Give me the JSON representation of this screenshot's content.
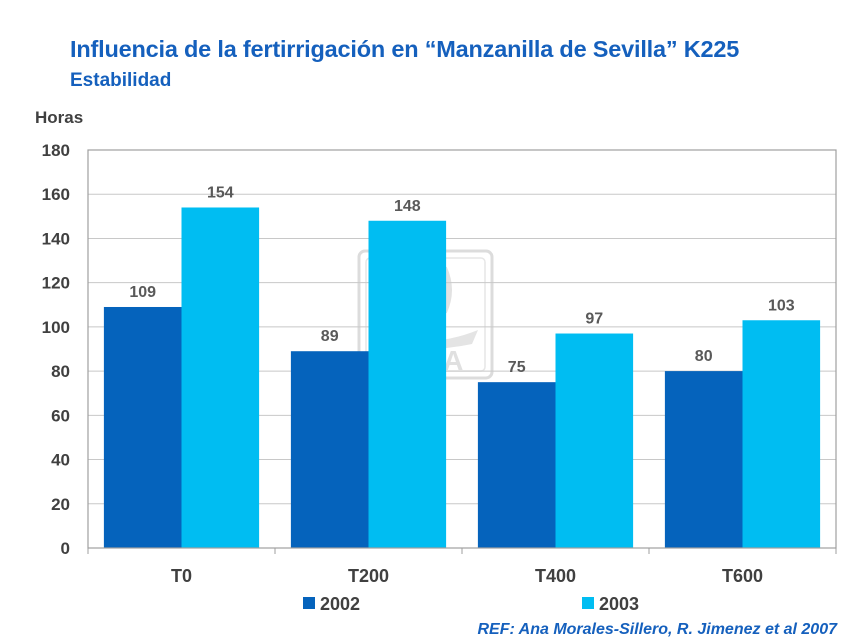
{
  "slide": {
    "title": "Influencia de la fertirrigación en “Manzanilla de Sevilla” K225",
    "subtitle": "Estabilidad",
    "reference": "REF: Ana Morales-Sillero, R. Jimenez et al 2007",
    "watermark": "YARA"
  },
  "colors": {
    "title": "#1560bd",
    "series_2002": "#0563bc",
    "series_2003": "#00bdf2",
    "axis_text": "#404040",
    "label_text": "#595959",
    "grid": "#c8c8c8",
    "plot_border": "#9f9f9f"
  },
  "chart_data": {
    "type": "bar",
    "title": "Influencia de la fertirrigación en “Manzanilla de Sevilla” K225",
    "subtitle": "Estabilidad",
    "ylabel": "Horas",
    "xlabel": "",
    "categories": [
      "T0",
      "T200",
      "T400",
      "T600"
    ],
    "series": [
      {
        "name": "2002",
        "values": [
          109,
          89,
          75,
          80
        ]
      },
      {
        "name": "2003",
        "values": [
          154,
          148,
          97,
          103
        ]
      }
    ],
    "ylim": [
      0,
      180
    ],
    "yticks": [
      0,
      20,
      40,
      60,
      80,
      100,
      120,
      140,
      160,
      180
    ],
    "grid": true,
    "legend_position": "bottom",
    "data_labels": true
  }
}
